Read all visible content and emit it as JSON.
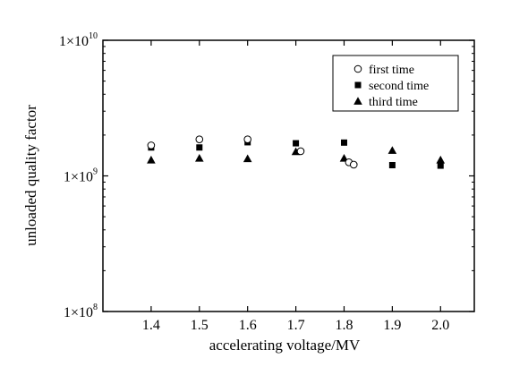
{
  "chart_data": {
    "type": "scatter",
    "xlabel": "accelerating voltage/MV",
    "ylabel": "unloaded quality factor",
    "xlim": [
      1.3,
      2.07
    ],
    "ylim": [
      100000000,
      10000000000
    ],
    "y_scale": "log",
    "x_ticks": [
      {
        "value": 1.4,
        "label": "1.4"
      },
      {
        "value": 1.5,
        "label": "1.5"
      },
      {
        "value": 1.6,
        "label": "1.6"
      },
      {
        "value": 1.7,
        "label": "1.7"
      },
      {
        "value": 1.8,
        "label": "1.8"
      },
      {
        "value": 1.9,
        "label": "1.9"
      },
      {
        "value": 2.0,
        "label": "2.0"
      }
    ],
    "y_ticks": [
      {
        "value": 100000000,
        "base": "1×10",
        "exp": "8"
      },
      {
        "value": 1000000000,
        "base": "1×10",
        "exp": "9"
      },
      {
        "value": 10000000000,
        "base": "1×10",
        "exp": "10"
      }
    ],
    "legend_position": "top-right",
    "grid": false,
    "series": [
      {
        "name": "first time",
        "marker": "open-circle",
        "points": [
          {
            "x": 1.4,
            "y": 1680000000
          },
          {
            "x": 1.5,
            "y": 1860000000
          },
          {
            "x": 1.6,
            "y": 1860000000
          },
          {
            "x": 1.71,
            "y": 1520000000
          },
          {
            "x": 1.81,
            "y": 1260000000
          },
          {
            "x": 1.82,
            "y": 1210000000
          }
        ]
      },
      {
        "name": "second time",
        "marker": "filled-square",
        "points": [
          {
            "x": 1.4,
            "y": 1620000000
          },
          {
            "x": 1.5,
            "y": 1620000000
          },
          {
            "x": 1.6,
            "y": 1770000000
          },
          {
            "x": 1.7,
            "y": 1740000000
          },
          {
            "x": 1.8,
            "y": 1760000000
          },
          {
            "x": 1.9,
            "y": 1200000000
          },
          {
            "x": 2.0,
            "y": 1190000000
          }
        ]
      },
      {
        "name": "third time",
        "marker": "filled-triangle",
        "points": [
          {
            "x": 1.4,
            "y": 1310000000
          },
          {
            "x": 1.5,
            "y": 1350000000
          },
          {
            "x": 1.6,
            "y": 1340000000
          },
          {
            "x": 1.7,
            "y": 1510000000
          },
          {
            "x": 1.8,
            "y": 1350000000
          },
          {
            "x": 1.9,
            "y": 1540000000
          },
          {
            "x": 2.0,
            "y": 1310000000
          }
        ]
      }
    ]
  }
}
